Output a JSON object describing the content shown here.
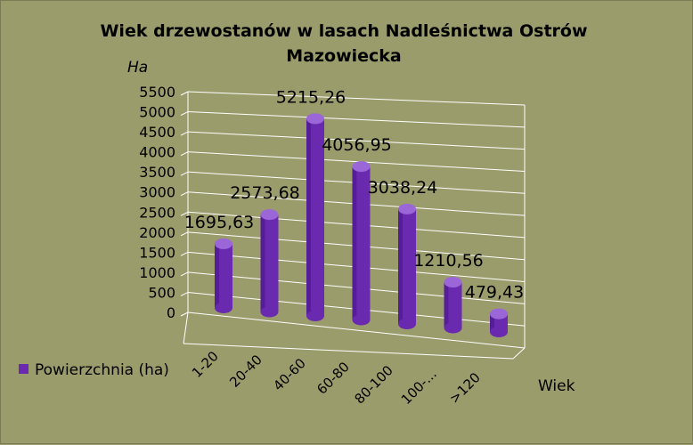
{
  "chart_data": {
    "type": "bar",
    "title_line1": "Wiek drzewostanów w lasach Nadleśnictwa Ostrów",
    "title_line2": "Mazowiecka",
    "ylabel": "Ha",
    "xlabel": "Wiek",
    "categories": [
      "1-20",
      "20-40",
      "40-60",
      "60-80",
      "80-100",
      "100-...",
      ">120"
    ],
    "series": [
      {
        "name": "Powierzchnia (ha)",
        "values": [
          1695.63,
          2573.68,
          5215.26,
          4056.95,
          3038.24,
          1210.56,
          479.43
        ],
        "labels": [
          "1695,63",
          "2573,68",
          "5215,26",
          "4056,95",
          "3038,24",
          "1210,56",
          "479,43"
        ]
      }
    ],
    "yticks": [
      "0",
      "500",
      "1000",
      "1500",
      "2000",
      "2500",
      "3000",
      "3500",
      "4000",
      "4500",
      "5000",
      "5500"
    ],
    "ylim": [
      0,
      5500
    ],
    "grid": true,
    "legend_position": "left",
    "colors": {
      "background": "#9b9c6c",
      "bar_side": "#6a2ab0",
      "bar_top": "#9a66d8",
      "bar_dark": "#4a168a",
      "grid": "#ffffff"
    }
  }
}
